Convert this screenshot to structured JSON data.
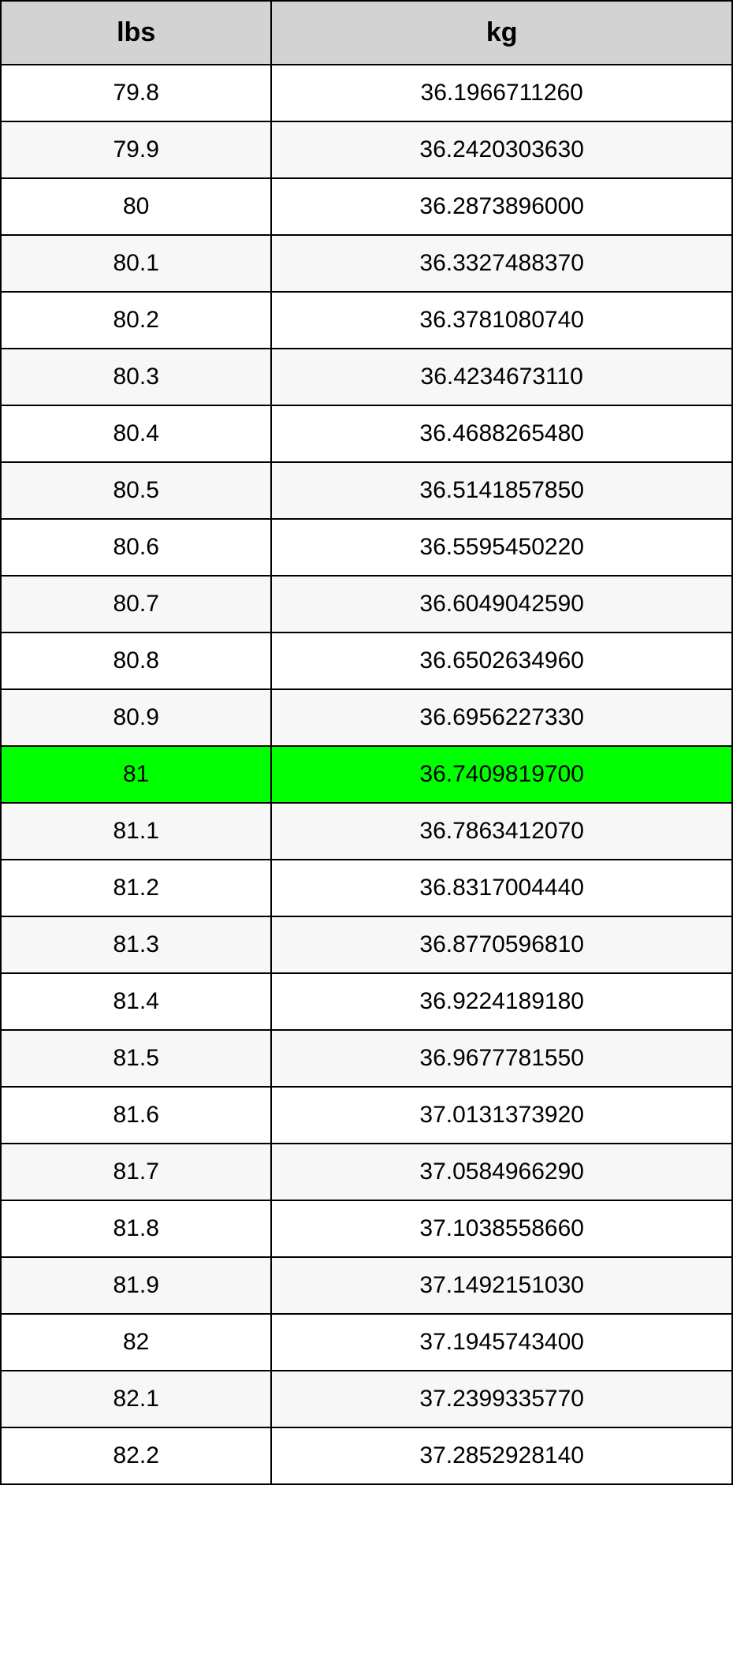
{
  "conversion_table": {
    "type": "table",
    "columns": [
      "lbs",
      "kg"
    ],
    "rows": [
      [
        "79.8",
        "36.1966711260"
      ],
      [
        "79.9",
        "36.2420303630"
      ],
      [
        "80",
        "36.2873896000"
      ],
      [
        "80.1",
        "36.3327488370"
      ],
      [
        "80.2",
        "36.3781080740"
      ],
      [
        "80.3",
        "36.4234673110"
      ],
      [
        "80.4",
        "36.4688265480"
      ],
      [
        "80.5",
        "36.5141857850"
      ],
      [
        "80.6",
        "36.5595450220"
      ],
      [
        "80.7",
        "36.6049042590"
      ],
      [
        "80.8",
        "36.6502634960"
      ],
      [
        "80.9",
        "36.6956227330"
      ],
      [
        "81",
        "36.7409819700"
      ],
      [
        "81.1",
        "36.7863412070"
      ],
      [
        "81.2",
        "36.8317004440"
      ],
      [
        "81.3",
        "36.8770596810"
      ],
      [
        "81.4",
        "36.9224189180"
      ],
      [
        "81.5",
        "36.9677781550"
      ],
      [
        "81.6",
        "37.0131373920"
      ],
      [
        "81.7",
        "37.0584966290"
      ],
      [
        "81.8",
        "37.1038558660"
      ],
      [
        "81.9",
        "37.1492151030"
      ],
      [
        "82",
        "37.1945743400"
      ],
      [
        "82.1",
        "37.2399335770"
      ],
      [
        "82.2",
        "37.2852928140"
      ]
    ],
    "highlighted_row_index": 12,
    "header_background_color": "#d3d3d3",
    "row_odd_background_color": "#ffffff",
    "row_even_background_color": "#f7f7f7",
    "highlight_background_color": "#00ff00",
    "text_color": "#000000",
    "border_color": "#000000",
    "header_fontsize": 34,
    "cell_fontsize": 30,
    "column_widths": [
      "37%",
      "63%"
    ]
  }
}
